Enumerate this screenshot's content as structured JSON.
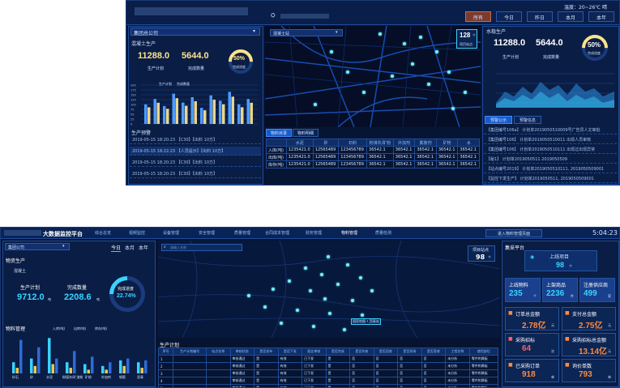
{
  "dash1": {
    "header": {
      "weather": "温度：20~26℃ 晴",
      "time_tabs": [
        "所有",
        "今日",
        "昨日",
        "本月",
        "本年"
      ],
      "active_tab": "所有"
    },
    "company_select": "集团总公司",
    "concrete": {
      "title": "混凝土生产",
      "plan_value": "11288.0",
      "plan_label": "生产计划",
      "done_value": "5644.0",
      "done_label": "完成数量",
      "progress_value": "50%",
      "progress_label": "完成进度",
      "progress_fraction": 0.5
    },
    "bar_chart": {
      "legend": [
        "生产计划",
        "完成数量"
      ],
      "y_ticks": [
        "200",
        "175",
        "150",
        "125",
        "100",
        "75",
        "50",
        "25",
        "0"
      ]
    },
    "production_warning": {
      "title": "生产预警",
      "rows": [
        "2019-05-15 18:20:23 【C30】【出料 10方】",
        "2019-05-15 18:22:23 【人员提示】【出料 10方】",
        "2019-05-15 18:20:23 【C30】【出料 10方】",
        "2019-05-15 18:20:23 【C30】【出料 10方】",
        "2019-05-15 18:20:23 【C30】【出料 10方】"
      ]
    },
    "map_select": "混凝土站",
    "map_count": {
      "value": "128",
      "unit": "个",
      "label": "项目站点"
    },
    "table": {
      "tabs": [
        "物料目录",
        "物料明细"
      ],
      "headers": [
        "",
        "水泥",
        "砂",
        "石料",
        "粉煤灰/矿粉",
        "外加剂",
        "膨胀剂",
        "矿粉",
        "水"
      ],
      "rows": [
        [
          "入库(吨)",
          "1235421.0",
          "12565489",
          "123456789",
          "36542.1",
          "36542.1",
          "36542.1",
          "36542.1",
          "36542.1"
        ],
        [
          "出库(吨)",
          "1235421.0",
          "12565489",
          "123456789",
          "36542.1",
          "36542.1",
          "36542.1",
          "36542.1",
          "36542.1"
        ],
        [
          "库存(吨)",
          "1235421.0",
          "12565489",
          "123456789",
          "36542.1",
          "36542.1",
          "36542.1",
          "36542.1",
          "36542.1"
        ]
      ]
    },
    "water": {
      "title": "水稳生产",
      "plan_value": "11288.0",
      "plan_label": "生产计划",
      "done_value": "5644.0",
      "done_label": "完成数量",
      "progress_value": "50%",
      "progress_label": "完成进度",
      "progress_fraction": 0.5
    },
    "alert_tabs": [
      "预警公示",
      "预警信息"
    ],
    "alerts": [
      "【集团编号106a】 计划单2019050510009号广告员人文审批",
      "【集团编号106】 计划单2019050510011 出现人员审核",
      "【集团编号106】 计划单2019050510111 出现过出现异常",
      "【秘1】 计划单2019050511 2019050509",
      "【站点编号2019】 计划单2019050510111, 2019050509001",
      "【监控下发生产】 计划单2019050511, 2019050509001"
    ]
  },
  "dash2": {
    "header": {
      "title": "大数据监控平台",
      "nav": [
        "综合总览",
        "视频监控",
        "设备管理",
        "安全管理",
        "质量管理",
        "合同成本管理",
        "财务管理",
        "物料管理",
        "质量检测"
      ],
      "nav_active": "物料管理",
      "right_button": "进入物料管理页面",
      "clock": "5:04:23"
    },
    "company_select": "集团公司",
    "time_tabs": [
      "今日",
      "本月",
      "本年"
    ],
    "material_title": "物资生产",
    "concrete": {
      "title": "混凝土",
      "plan_value": "9712.0",
      "plan_unit": "吨",
      "plan_label": "生产计划",
      "done_value": "2208.6",
      "done_unit": "吨",
      "done_label": "完成数量",
      "progress_label": "完成进度",
      "progress_value": "22.74%",
      "progress_fraction": 0.2274
    },
    "material_chart": {
      "title": "物料管理",
      "legend": [
        "入库(吨)",
        "出库(吨)",
        "库存(吨)"
      ],
      "categories": [
        "砂石",
        "砂",
        "水泥",
        "粉煤灰/矿渣粉",
        "矿粉",
        "外加剂",
        "钢筋",
        "沥青"
      ]
    },
    "map": {
      "search_placeholder": "请输入名称",
      "count_label": "项目站点",
      "count_value": "98",
      "count_unit": "个",
      "label": "国家地图 • 西青站"
    },
    "plan_table": {
      "title": "生产计划",
      "headers": [
        "序号",
        "生产计划编号",
        "站点名称",
        "审核状态",
        "是否发布",
        "是否下发",
        "配比审核",
        "是否完成",
        "是否作废",
        "是否回收",
        "是否到场",
        "是否签收",
        "工程名称",
        "使用部位"
      ],
      "rows": [
        [
          "1",
          "",
          "",
          "审核通过",
          "是",
          "有效",
          "已下发",
          "是",
          "否",
          "否",
          "否",
          "否",
          "未分析",
          "零件附属板"
        ],
        [
          "2",
          "",
          "",
          "审核通过",
          "是",
          "有效",
          "已下发",
          "是",
          "否",
          "否",
          "否",
          "否",
          "未分析",
          "零件附属板"
        ],
        [
          "3",
          "",
          "",
          "审核通过",
          "是",
          "有效",
          "已下发",
          "是",
          "否",
          "否",
          "否",
          "否",
          "未分析",
          "零件附属板"
        ],
        [
          "4",
          "",
          "",
          "审核通过",
          "是",
          "有效",
          "已下发",
          "是",
          "否",
          "否",
          "否",
          "否",
          "未分析",
          "零件附属板"
        ],
        [
          "5",
          "",
          "",
          "审核通过",
          "是",
          "有效",
          "已下发",
          "是",
          "否",
          "否",
          "否",
          "否",
          "未分析",
          "零件附属板"
        ]
      ]
    },
    "procurement": {
      "title": "集采平台",
      "project_label": "上线项目",
      "project_value": "98",
      "project_unit": "个",
      "stats": [
        {
          "label": "上线物料",
          "value": "235",
          "unit": "个"
        },
        {
          "label": "上架商品",
          "value": "2236",
          "unit": "件"
        },
        {
          "label": "注册供应商",
          "value": "499",
          "unit": "家"
        }
      ],
      "cards": [
        {
          "label": "订单总金额",
          "value": "2.78亿",
          "unit": "元",
          "color": "#ff8a3d"
        },
        {
          "label": "支付总金额",
          "value": "2.75亿",
          "unit": "元",
          "color": "#ff8a3d"
        },
        {
          "label": "采购招标",
          "value": "64",
          "unit": "次",
          "color": "#ff5f5f"
        },
        {
          "label": "采购招标总金额",
          "value": "13.14亿",
          "unit": "元",
          "color": "#ff8a3d"
        },
        {
          "label": "已采购订单",
          "value": "918",
          "unit": "单",
          "color": "#ff8a3d"
        },
        {
          "label": "询价单数",
          "value": "793",
          "unit": "单",
          "color": "#ff8a3d"
        }
      ]
    }
  }
}
